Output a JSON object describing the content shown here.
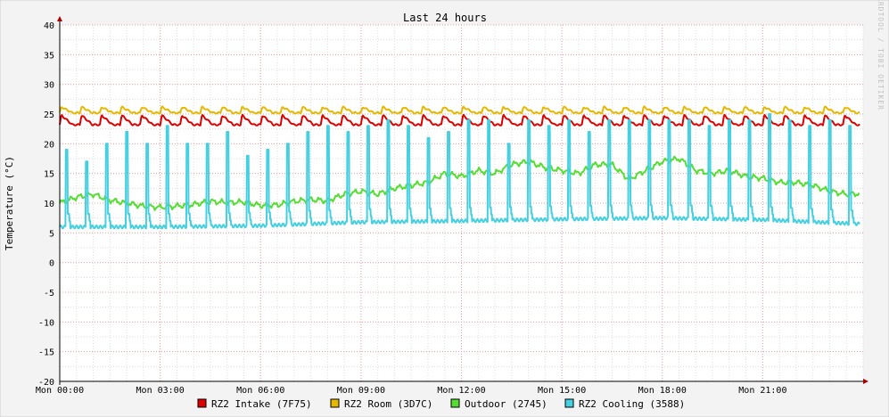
{
  "chart_data": {
    "type": "line",
    "title": "Last 24 hours",
    "ylabel": "Temperature (°C)",
    "watermark": "RRDTOOL / TOBI OETIKER",
    "ylim": [
      -20,
      40
    ],
    "yticks": [
      40,
      35,
      30,
      25,
      20,
      15,
      10,
      5,
      0,
      -5,
      -10,
      -15,
      -20
    ],
    "xlim_hours": [
      0,
      24
    ],
    "xticks": [
      {
        "label": "Mon 00:00",
        "hour": 0
      },
      {
        "label": "Mon 03:00",
        "hour": 3
      },
      {
        "label": "Mon 06:00",
        "hour": 6
      },
      {
        "label": "Mon 09:00",
        "hour": 9
      },
      {
        "label": "Mon 12:00",
        "hour": 12
      },
      {
        "label": "Mon 15:00",
        "hour": 15
      },
      {
        "label": "Mon 18:00",
        "hour": 18
      },
      {
        "label": "Mon 21:00",
        "hour": 21
      }
    ],
    "grid": true,
    "legend_position": "bottom",
    "series": [
      {
        "name": "RZ2 Intake (7F75)",
        "color": "#dd0000",
        "pattern": {
          "kind": "sawtooth",
          "base": 23.2,
          "peak": 24.8,
          "period_hours": 0.6
        }
      },
      {
        "name": "RZ2 Room (3D7C)",
        "color": "#e6b800",
        "pattern": {
          "kind": "sawtooth",
          "base": 25.2,
          "peak": 26.2,
          "period_hours": 0.6
        }
      },
      {
        "name": "Outdoor (2745)",
        "color": "#55dd33",
        "pattern": {
          "kind": "smooth"
        },
        "points": [
          [
            0,
            10
          ],
          [
            0.5,
            11
          ],
          [
            1,
            11.5
          ],
          [
            1.5,
            10.5
          ],
          [
            2,
            10
          ],
          [
            2.5,
            9.5
          ],
          [
            3,
            9.3
          ],
          [
            3.5,
            9.5
          ],
          [
            4,
            9.8
          ],
          [
            4.5,
            10.3
          ],
          [
            5,
            10.1
          ],
          [
            5.5,
            10.2
          ],
          [
            6,
            9.6
          ],
          [
            6.5,
            9.7
          ],
          [
            7,
            10.3
          ],
          [
            7.5,
            10.6
          ],
          [
            8,
            10.4
          ],
          [
            8.5,
            11.5
          ],
          [
            9,
            12
          ],
          [
            9.5,
            11.5
          ],
          [
            10,
            12.5
          ],
          [
            10.5,
            13
          ],
          [
            11,
            13.5
          ],
          [
            11.5,
            15
          ],
          [
            12,
            14.5
          ],
          [
            12.5,
            15.5
          ],
          [
            13,
            15
          ],
          [
            13.5,
            16.5
          ],
          [
            14,
            17
          ],
          [
            14.5,
            16
          ],
          [
            15,
            15.5
          ],
          [
            15.5,
            15
          ],
          [
            16,
            16.5
          ],
          [
            16.5,
            16.5
          ],
          [
            17,
            14
          ],
          [
            17.5,
            15.5
          ],
          [
            18,
            17
          ],
          [
            18.5,
            17.5
          ],
          [
            19,
            15.5
          ],
          [
            19.5,
            15
          ],
          [
            20,
            15.5
          ],
          [
            20.5,
            14.5
          ],
          [
            21,
            14.2
          ],
          [
            21.5,
            13.5
          ],
          [
            22,
            13.5
          ],
          [
            22.5,
            13
          ],
          [
            23,
            12
          ],
          [
            23.5,
            11.5
          ],
          [
            23.9,
            11.6
          ]
        ]
      },
      {
        "name": "RZ2 Cooling (3588)",
        "color": "#44d0e0",
        "pattern": {
          "kind": "spikes",
          "period_hours": 0.6
        },
        "baseline": [
          [
            0,
            6
          ],
          [
            3,
            6
          ],
          [
            6,
            6.2
          ],
          [
            9,
            6.8
          ],
          [
            12,
            7
          ],
          [
            15,
            7.3
          ],
          [
            18,
            7.5
          ],
          [
            21,
            7.2
          ],
          [
            23.9,
            6.5
          ]
        ],
        "spike_peaks": [
          19,
          17,
          20,
          22,
          20,
          23,
          20,
          20,
          22,
          18,
          19,
          20,
          22,
          23,
          22,
          23,
          24,
          23,
          21,
          22,
          24,
          24,
          20,
          24,
          23,
          24,
          22,
          24,
          24,
          24,
          24,
          24,
          23,
          24,
          24,
          25,
          24,
          23,
          24,
          23
        ]
      }
    ]
  }
}
